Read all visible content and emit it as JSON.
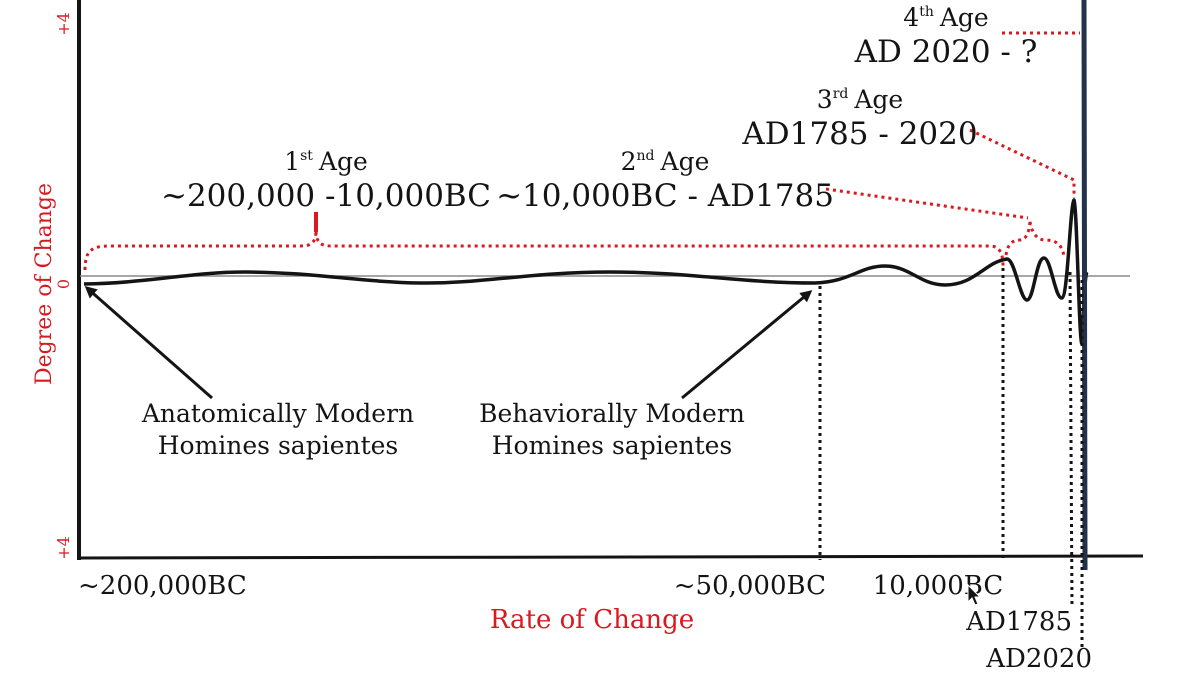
{
  "y_axis": {
    "label": "Degree of Change",
    "top_tick": "+4",
    "zero_tick": "0",
    "bottom_tick": "+4"
  },
  "x_axis": {
    "label": "Rate of Change",
    "ticks": {
      "t1": "~200,000BC",
      "t2": "~50,000BC",
      "t3": "10,000BC",
      "t4": "AD1785",
      "t5": "AD2020"
    }
  },
  "ages": {
    "first": {
      "num": "1",
      "sup": "st",
      "word": "Age",
      "range": "~200,000 -10,000BC"
    },
    "second": {
      "num": "2",
      "sup": "nd",
      "word": "Age",
      "range": "~10,000BC - AD1785"
    },
    "third": {
      "num": "3",
      "sup": "rd",
      "word": "Age",
      "range": "AD1785 - 2020"
    },
    "fourth": {
      "num": "4",
      "sup": "th",
      "word": "Age",
      "range": "AD 2020 - ?"
    }
  },
  "annotations": {
    "anatomical": {
      "line1": "Anatomically Modern",
      "line2": "Homines sapientes"
    },
    "behavioral": {
      "line1": "Behaviorally Modern",
      "line2": "Homines sapientes"
    }
  },
  "colors": {
    "accent": "#d8191f",
    "ink": "#141414",
    "signal": "#22324a"
  }
}
